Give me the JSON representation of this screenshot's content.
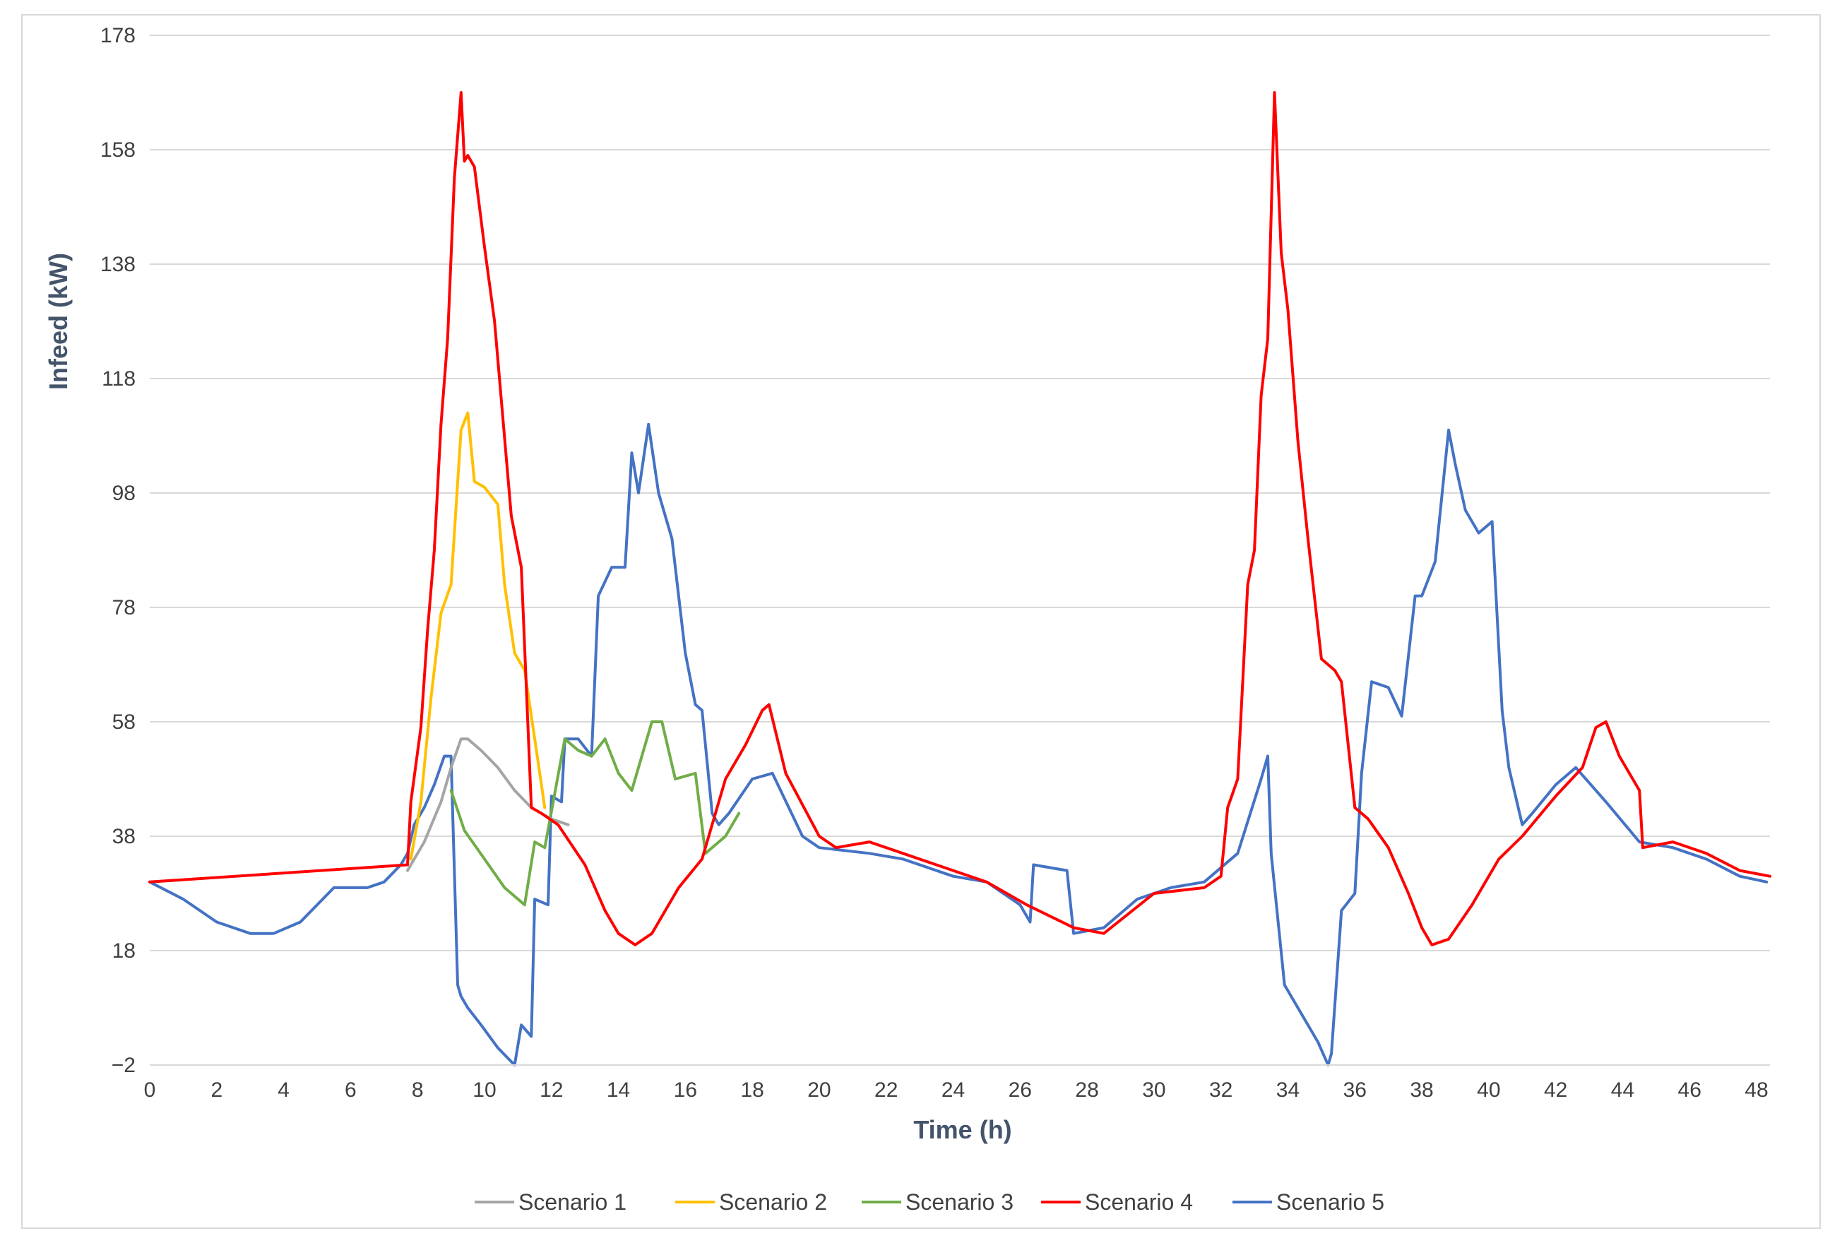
{
  "chart_data": {
    "type": "line",
    "title": "",
    "xlabel": "Time (h)",
    "ylabel": "Infeed  (kW)",
    "xlim": [
      0,
      48.4
    ],
    "ylim": [
      -2,
      178
    ],
    "xticks": [
      0,
      2,
      4,
      6,
      8,
      10,
      12,
      14,
      16,
      18,
      20,
      22,
      24,
      26,
      28,
      30,
      32,
      34,
      36,
      38,
      40,
      42,
      44,
      46,
      48
    ],
    "yticks": [
      -2,
      18,
      38,
      58,
      78,
      98,
      118,
      138,
      158,
      178
    ],
    "ytick_labels": [
      "−2",
      "18",
      "38",
      "58",
      "78",
      "98",
      "118",
      "138",
      "158",
      "178"
    ],
    "grid": "horizontal",
    "legend_position": "bottom",
    "series": [
      {
        "name": "Scenario 1",
        "color": "#a5a5a5",
        "x": [
          7.7,
          8.2,
          8.7,
          9.0,
          9.3,
          9.5,
          9.9,
          10.4,
          10.9,
          11.4,
          12.0,
          12.5
        ],
        "y": [
          32,
          37,
          44,
          50,
          55,
          55,
          53,
          50,
          46,
          43,
          41,
          40
        ]
      },
      {
        "name": "Scenario 2",
        "color": "#ffc000",
        "x": [
          7.8,
          8.1,
          8.4,
          8.7,
          9.0,
          9.3,
          9.5,
          9.7,
          10.0,
          10.4,
          10.6,
          10.9,
          11.2,
          11.5,
          11.8
        ],
        "y": [
          34,
          44,
          62,
          77,
          82,
          109,
          112,
          100,
          99,
          96,
          82,
          70,
          67,
          55,
          43
        ]
      },
      {
        "name": "Scenario 3",
        "color": "#70ad47",
        "x": [
          9.0,
          9.4,
          10.0,
          10.6,
          11.2,
          11.5,
          11.8,
          12.4,
          12.8,
          13.2,
          13.6,
          14.0,
          14.4,
          15.0,
          15.3,
          15.7,
          16.3,
          16.6,
          17.2,
          17.6
        ],
        "y": [
          46,
          39,
          34,
          29,
          26,
          37,
          36,
          55,
          53,
          52,
          55,
          49,
          46,
          58,
          58,
          48,
          49,
          35,
          38,
          42
        ]
      },
      {
        "name": "Scenario 4",
        "color": "#ff0000",
        "x": [
          0,
          7.7,
          7.8,
          8.1,
          8.3,
          8.5,
          8.7,
          8.9,
          9.1,
          9.3,
          9.4,
          9.5,
          9.7,
          10.0,
          10.3,
          10.8,
          11.1,
          11.4,
          11.7,
          12.2,
          13.0,
          13.6,
          14.0,
          14.5,
          15.0,
          15.8,
          16.5,
          17.2,
          17.8,
          18.3,
          18.5,
          19.0,
          20.0,
          20.5,
          21.5,
          22.5,
          24.0,
          25.0,
          26.2,
          27.6,
          28.5,
          30.0,
          31.5,
          32.0,
          32.2,
          32.5,
          32.8,
          33.0,
          33.2,
          33.4,
          33.6,
          33.8,
          34.0,
          34.3,
          34.6,
          35.0,
          35.4,
          35.6,
          36.0,
          36.4,
          37.0,
          37.6,
          38.0,
          38.3,
          38.8,
          39.5,
          40.3,
          41.0,
          42.0,
          42.8,
          43.2,
          43.5,
          43.9,
          44.3,
          44.5,
          44.6,
          45.5,
          46.5,
          47.5,
          48.4
        ],
        "y": [
          30,
          33,
          44,
          57,
          74,
          88,
          110,
          125,
          153,
          168,
          156,
          157,
          155,
          141,
          128,
          94,
          85,
          43,
          42,
          40,
          33,
          25,
          21,
          19,
          21,
          29,
          34,
          48,
          54,
          60,
          61,
          49,
          38,
          36,
          37,
          35,
          32,
          30,
          26,
          22,
          21,
          28,
          29,
          31,
          43,
          48,
          82,
          88,
          115,
          125,
          168,
          140,
          130,
          107,
          90,
          69,
          67,
          65,
          43,
          41,
          36,
          28,
          22,
          19,
          20,
          26,
          34,
          38,
          45,
          50,
          57,
          58,
          52,
          48,
          46,
          36,
          37,
          35,
          32,
          31
        ]
      },
      {
        "name": "Scenario 5",
        "color": "#4472c4",
        "x": [
          0,
          1,
          2,
          3,
          3.7,
          4.5,
          5.5,
          6.5,
          7.0,
          7.5,
          7.7,
          7.9,
          8.2,
          8.5,
          8.8,
          9.0,
          9.2,
          9.3,
          9.5,
          9.9,
          10.4,
          10.9,
          11.1,
          11.4,
          11.5,
          11.9,
          12.0,
          12.3,
          12.4,
          12.8,
          13.2,
          13.4,
          13.8,
          14.2,
          14.4,
          14.6,
          14.9,
          15.2,
          15.6,
          16.0,
          16.3,
          16.5,
          16.8,
          17.0,
          17.3,
          18.0,
          18.6,
          19.5,
          20.0,
          21.5,
          22.5,
          24.0,
          25.0,
          26.0,
          26.3,
          26.4,
          27.4,
          27.6,
          28.5,
          29.5,
          30.5,
          31.5,
          32.5,
          33.2,
          33.4,
          33.5,
          33.9,
          34.4,
          34.9,
          35.2,
          35.3,
          35.6,
          36.0,
          36.2,
          36.5,
          37.0,
          37.4,
          37.8,
          38.0,
          38.4,
          38.8,
          39.0,
          39.3,
          39.7,
          40.1,
          40.4,
          40.6,
          41.0,
          41.3,
          42.0,
          42.6,
          43.5,
          44.5,
          45.5,
          46.5,
          47.5,
          48.3
        ],
        "y": [
          30,
          27,
          23,
          21,
          21,
          23,
          29,
          29,
          30,
          33,
          35,
          40,
          43,
          47,
          52,
          52,
          12,
          10,
          8,
          5,
          1,
          -2,
          5,
          3,
          27,
          26,
          45,
          44,
          55,
          55,
          52,
          80,
          85,
          85,
          105,
          98,
          110,
          98,
          90,
          70,
          61,
          60,
          42,
          40,
          42,
          48,
          49,
          38,
          36,
          35,
          34,
          31,
          30,
          26,
          23,
          33,
          32,
          21,
          22,
          27,
          29,
          30,
          35,
          48,
          52,
          35,
          12,
          7,
          2,
          -2,
          0,
          25,
          28,
          49,
          65,
          64,
          59,
          80,
          80,
          86,
          109,
          103,
          95,
          91,
          93,
          60,
          50,
          40,
          42,
          47,
          50,
          44,
          37,
          36,
          34,
          31,
          30
        ]
      }
    ]
  }
}
